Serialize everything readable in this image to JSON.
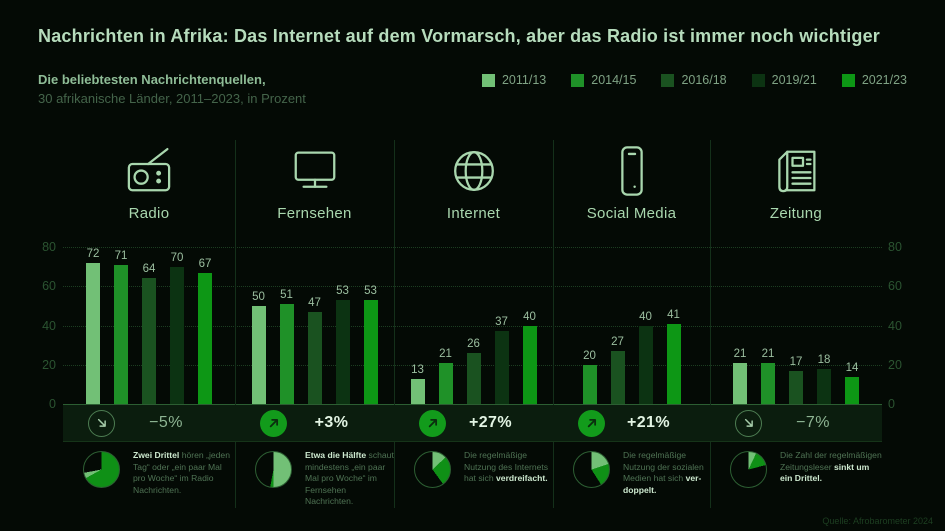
{
  "header": {
    "title": "Nachrichten in Afrika: Das Internet auf dem Vormarsch, aber das Radio ist immer noch wichtiger",
    "subtitle_bold": "Die beliebtesten Nachrichtenquellen,",
    "subtitle_detail": "30 afrikanische Länder, 2011–2023, in Prozent"
  },
  "legend": {
    "items": [
      {
        "label": "2011/13",
        "color": "#72c076"
      },
      {
        "label": "2014/15",
        "color": "#1f9128"
      },
      {
        "label": "2016/18",
        "color": "#1a5220"
      },
      {
        "label": "2019/21",
        "color": "#0c3312"
      },
      {
        "label": "2021/23",
        "color": "#0d9715"
      }
    ]
  },
  "chart_data": {
    "type": "bar",
    "title": "Die beliebtesten Nachrichtenquellen",
    "subtitle": "30 afrikanische Länder, 2011–2023, in Prozent",
    "unit": "Prozent",
    "ylim": [
      0,
      80
    ],
    "yticks": [
      0,
      20,
      40,
      60,
      80
    ],
    "grid": "dotted-horizontal",
    "legend_position": "top-right",
    "series_labels": [
      "2011/13",
      "2014/15",
      "2016/18",
      "2019/21",
      "2021/23"
    ],
    "series_colors": [
      "#72c076",
      "#1f9128",
      "#1a5220",
      "#0c3312",
      "#0d9715"
    ],
    "pie_palette": {
      "light": "#72c076",
      "dark": "#0f9016"
    },
    "groups": [
      {
        "label": "Radio",
        "icon": "radio-icon",
        "values": [
          72,
          71,
          64,
          70,
          67
        ],
        "change": "−5%",
        "trend": "down",
        "pie": {
          "segments": [
            {
              "color": "dark",
              "from": 0,
              "to": 241.2
            },
            {
              "color": "light",
              "from": 241.2,
              "to": 259.2
            }
          ]
        },
        "note": [
          {
            "t": "Zwei Drittel",
            "b": true
          },
          {
            "t": " hören „jeden Tag“ oder „ein paar Mal pro Woche“ im Radio Nachrichten.",
            "b": false
          }
        ]
      },
      {
        "label": "Fernsehen",
        "icon": "tv-icon",
        "values": [
          50,
          51,
          47,
          53,
          53
        ],
        "change": "+3%",
        "trend": "up",
        "pie": {
          "segments": [
            {
              "color": "light",
              "from": 0,
              "to": 180
            },
            {
              "color": "dark",
              "from": 180,
              "to": 190.8
            }
          ]
        },
        "note": [
          {
            "t": "Etwa die Hälfte",
            "b": true
          },
          {
            "t": " schaut mindestens „ein paar Mal pro Woche“ im Fernsehen Nachrichten.",
            "b": false
          }
        ]
      },
      {
        "label": "Internet",
        "icon": "globe-icon",
        "values": [
          13,
          21,
          26,
          37,
          40
        ],
        "change": "+27%",
        "trend": "up",
        "pie": {
          "segments": [
            {
              "color": "light",
              "from": 0,
              "to": 46.8
            },
            {
              "color": "dark",
              "from": 46.8,
              "to": 144
            }
          ]
        },
        "note": [
          {
            "t": "Die regelmäßige Nutzung des Internets hat sich ",
            "b": false
          },
          {
            "t": "verdreifacht.",
            "b": true
          }
        ]
      },
      {
        "label": "Social Media",
        "icon": "phone-icon",
        "values": [
          null,
          20,
          27,
          40,
          41
        ],
        "change": "+21%",
        "trend": "up",
        "pie": {
          "segments": [
            {
              "color": "light",
              "from": 0,
              "to": 72
            },
            {
              "color": "dark",
              "from": 72,
              "to": 147.6
            }
          ]
        },
        "note": [
          {
            "t": "Die regelmäßige Nutzung der sozialen Medien hat sich ",
            "b": false
          },
          {
            "t": "ver­doppelt.",
            "b": true
          }
        ]
      },
      {
        "label": "Zeitung",
        "icon": "newspaper-icon",
        "values": [
          21,
          21,
          17,
          18,
          14
        ],
        "change": "−7%",
        "trend": "down",
        "pie": {
          "segments": [
            {
              "color": "light",
              "from": 0,
              "to": 25.2
            },
            {
              "color": "dark",
              "from": 25.2,
              "to": 75.6
            }
          ]
        },
        "note": [
          {
            "t": "Die Zahl der regel­mäßigen Zeitungsleser ",
            "b": false
          },
          {
            "t": "sinkt um ein Drittel.",
            "b": true
          }
        ]
      }
    ]
  },
  "footer": {
    "source": "Quelle: Afrobarometer 2024"
  }
}
